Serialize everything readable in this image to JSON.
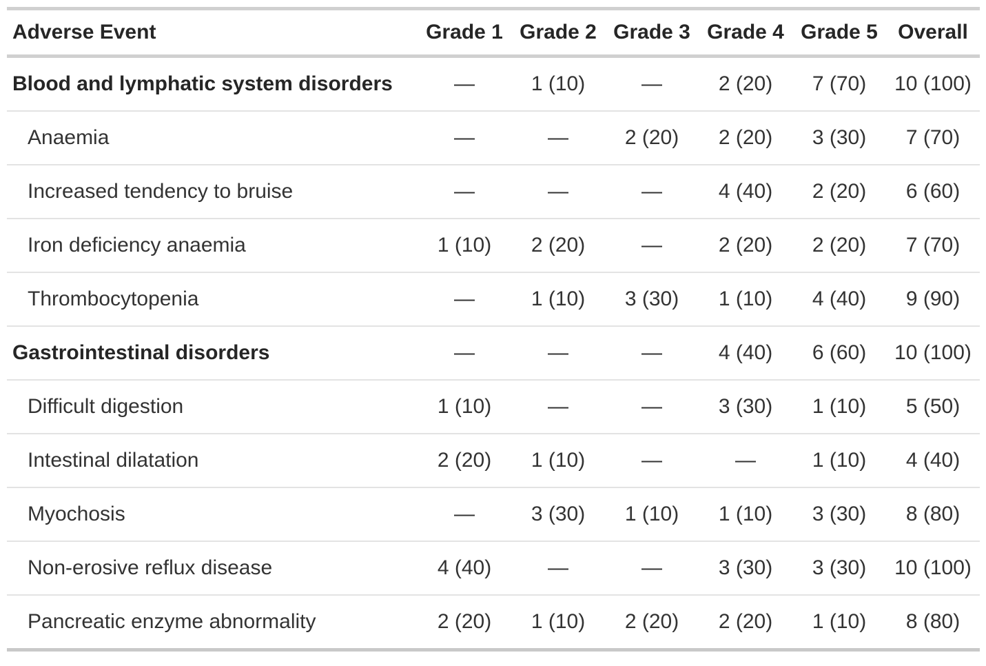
{
  "table": {
    "columns": [
      "Adverse Event",
      "Grade 1",
      "Grade 2",
      "Grade 3",
      "Grade 4",
      "Grade 5",
      "Overall"
    ],
    "empty_cell_symbol": "—",
    "colors": {
      "text": "#333333",
      "header_text": "#262626",
      "heavy_border": "#d0d0d0",
      "light_border": "#e3e3e3",
      "background": "#ffffff"
    },
    "rows": [
      {
        "label": "Blood and lymphatic system disorders",
        "type": "group",
        "values": [
          "—",
          "1 (10)",
          "—",
          "2 (20)",
          "7 (70)",
          "10 (100)"
        ]
      },
      {
        "label": "Anaemia",
        "type": "item",
        "values": [
          "—",
          "—",
          "2 (20)",
          "2 (20)",
          "3 (30)",
          "7 (70)"
        ]
      },
      {
        "label": "Increased tendency to bruise",
        "type": "item",
        "values": [
          "—",
          "—",
          "—",
          "4 (40)",
          "2 (20)",
          "6 (60)"
        ]
      },
      {
        "label": "Iron deficiency anaemia",
        "type": "item",
        "values": [
          "1 (10)",
          "2 (20)",
          "—",
          "2 (20)",
          "2 (20)",
          "7 (70)"
        ]
      },
      {
        "label": "Thrombocytopenia",
        "type": "item",
        "values": [
          "—",
          "1 (10)",
          "3 (30)",
          "1 (10)",
          "4 (40)",
          "9 (90)"
        ]
      },
      {
        "label": "Gastrointestinal disorders",
        "type": "group",
        "values": [
          "—",
          "—",
          "—",
          "4 (40)",
          "6 (60)",
          "10 (100)"
        ]
      },
      {
        "label": "Difficult digestion",
        "type": "item",
        "values": [
          "1 (10)",
          "—",
          "—",
          "3 (30)",
          "1 (10)",
          "5 (50)"
        ]
      },
      {
        "label": "Intestinal dilatation",
        "type": "item",
        "values": [
          "2 (20)",
          "1 (10)",
          "—",
          "—",
          "1 (10)",
          "4 (40)"
        ]
      },
      {
        "label": "Myochosis",
        "type": "item",
        "values": [
          "—",
          "3 (30)",
          "1 (10)",
          "1 (10)",
          "3 (30)",
          "8 (80)"
        ]
      },
      {
        "label": "Non-erosive reflux disease",
        "type": "item",
        "values": [
          "4 (40)",
          "—",
          "—",
          "3 (30)",
          "3 (30)",
          "10 (100)"
        ]
      },
      {
        "label": "Pancreatic enzyme abnormality",
        "type": "item",
        "values": [
          "2 (20)",
          "1 (10)",
          "2 (20)",
          "2 (20)",
          "1 (10)",
          "8 (80)"
        ]
      }
    ]
  }
}
